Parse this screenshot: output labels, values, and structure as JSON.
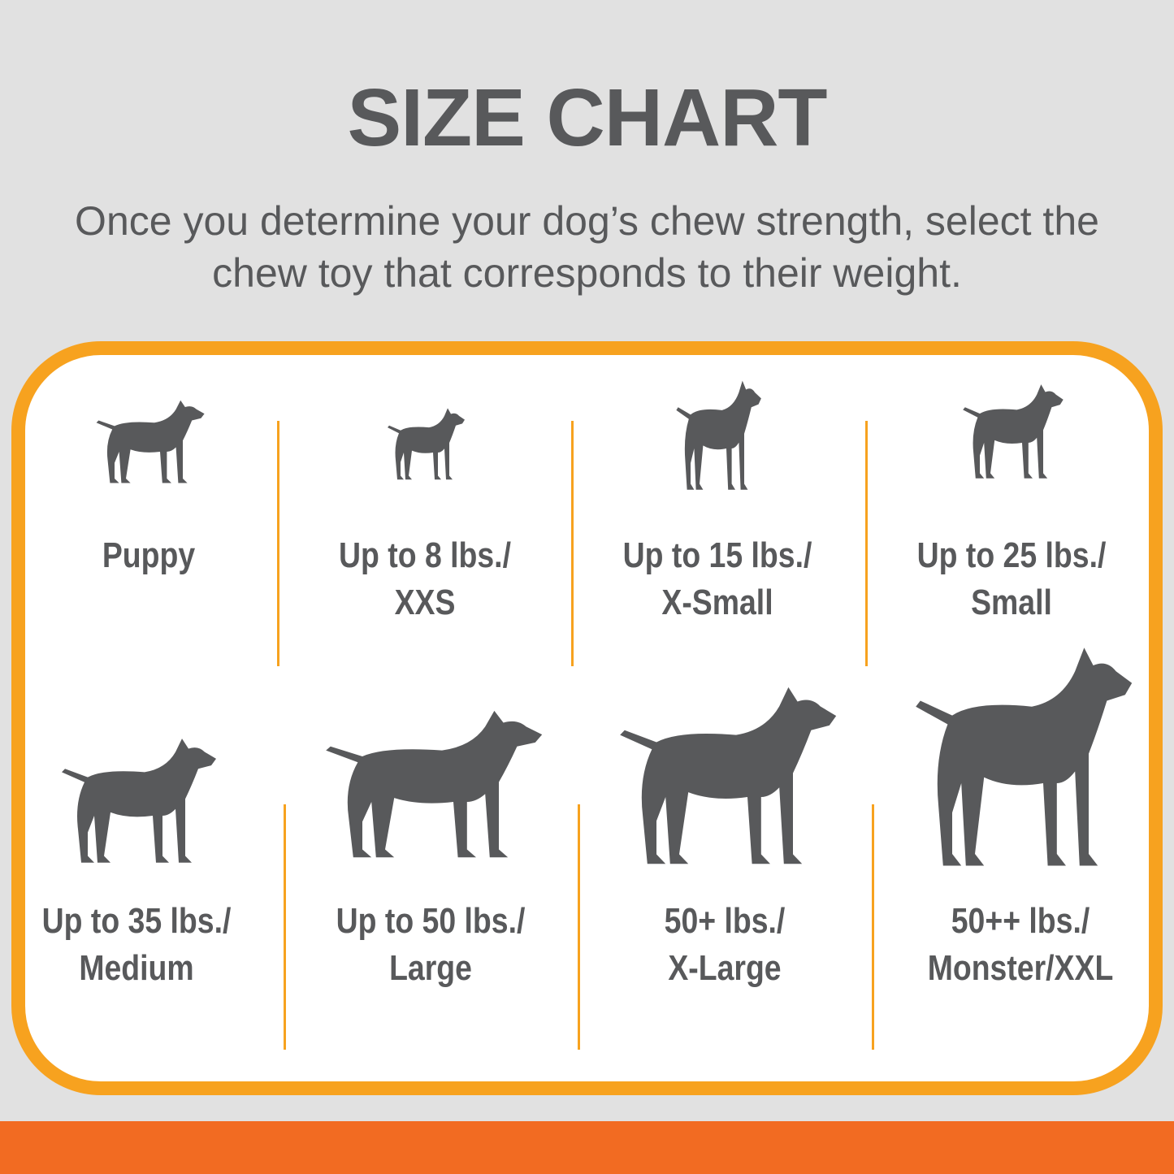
{
  "title": "SIZE CHART",
  "subtitle": "Once you determine your dog’s chew strength, select the chew toy that corresponds to their weight.",
  "colors": {
    "background": "#e1e1e1",
    "border": "#f7a21f",
    "bottom_bar": "#f26b22",
    "text": "#58595b"
  },
  "sizes": [
    {
      "line1": "Puppy",
      "line2": "",
      "icon": "puppy-icon"
    },
    {
      "line1": "Up to 8 lbs./",
      "line2": "XXS",
      "icon": "chihuahua-icon"
    },
    {
      "line1": "Up to 15 lbs./",
      "line2": "X-Small",
      "icon": "toy-terrier-icon"
    },
    {
      "line1": "Up to 25 lbs./",
      "line2": "Small",
      "icon": "terrier-icon"
    },
    {
      "line1": "Up to 35 lbs./",
      "line2": "Medium",
      "icon": "beagle-icon"
    },
    {
      "line1": "Up to 50 lbs./",
      "line2": "Large",
      "icon": "labrador-icon"
    },
    {
      "line1": "50+ lbs./",
      "line2": "X-Large",
      "icon": "shepherd-icon"
    },
    {
      "line1": "50++ lbs./",
      "line2": "Monster/XXL",
      "icon": "great-dane-icon"
    }
  ]
}
